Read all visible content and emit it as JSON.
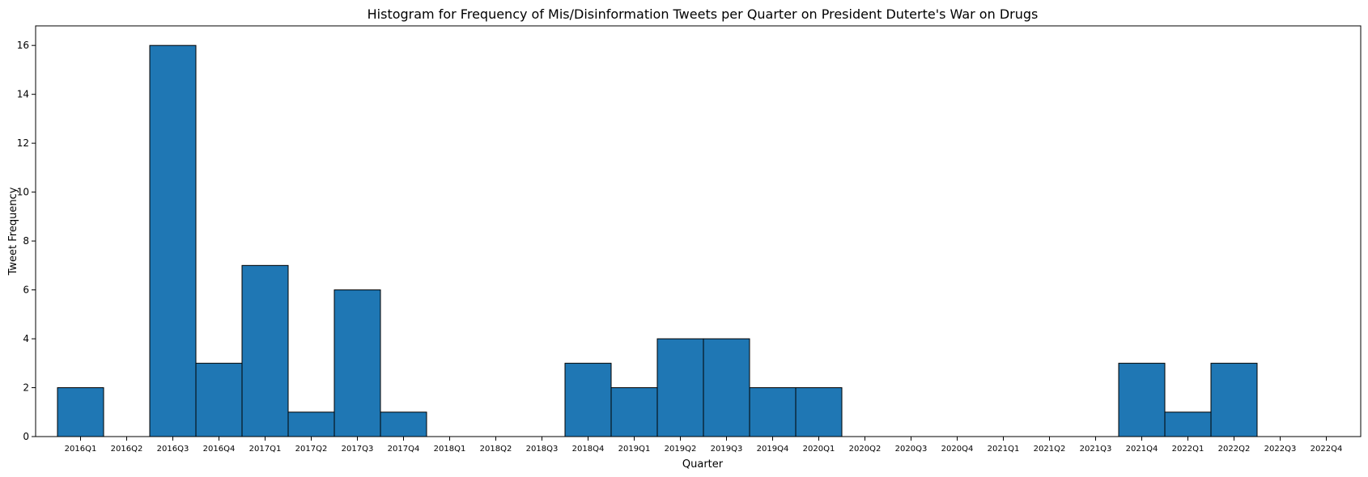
{
  "chart_data": {
    "type": "bar",
    "title": "Histogram for Frequency of Mis/Disinformation Tweets per Quarter on President Duterte's War on Drugs",
    "xlabel": "Quarter",
    "ylabel": "Tweet Frequency",
    "categories": [
      "2016Q1",
      "2016Q2",
      "2016Q3",
      "2016Q4",
      "2017Q1",
      "2017Q2",
      "2017Q3",
      "2017Q4",
      "2018Q1",
      "2018Q2",
      "2018Q3",
      "2018Q4",
      "2019Q1",
      "2019Q2",
      "2019Q3",
      "2019Q4",
      "2020Q1",
      "2020Q2",
      "2020Q3",
      "2020Q4",
      "2021Q1",
      "2021Q2",
      "2021Q3",
      "2021Q4",
      "2022Q1",
      "2022Q2",
      "2022Q3",
      "2022Q4"
    ],
    "values": [
      2,
      0,
      16,
      3,
      7,
      1,
      6,
      1,
      0,
      0,
      0,
      3,
      2,
      4,
      4,
      2,
      2,
      0,
      0,
      0,
      0,
      0,
      0,
      3,
      1,
      3,
      0,
      0
    ],
    "ylim": [
      0,
      16.8
    ],
    "yticks": [
      "0",
      "2",
      "4",
      "6",
      "8",
      "10",
      "12",
      "14",
      "16"
    ],
    "bar_color": "#1f77b4",
    "edge_color": "#000000",
    "grid": false
  }
}
